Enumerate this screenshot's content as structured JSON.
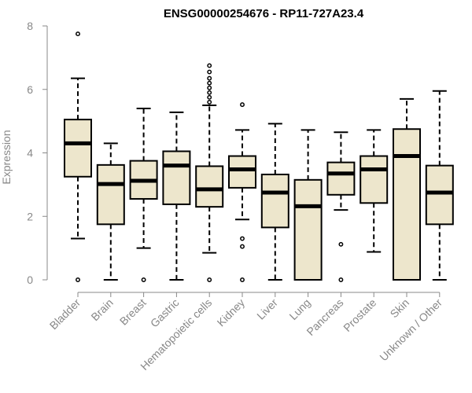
{
  "chart_data": {
    "type": "boxplot",
    "title": "ENSG00000254676 - RP11-727A23.4",
    "xlabel": "",
    "ylabel": "Expression",
    "ylim": [
      0,
      8
    ],
    "yticks": [
      0,
      2,
      4,
      6,
      8
    ],
    "colors": {
      "box_fill": "#ede6cc",
      "box_stroke": "#000000",
      "axis": "#888888"
    },
    "categories": [
      "Bladder",
      "Brain",
      "Breast",
      "Gastric",
      "Hematopoietic cells",
      "Kidney",
      "Liver",
      "Lung",
      "Pancreas",
      "Prostate",
      "Skin",
      "Unknown / Other"
    ],
    "boxes": [
      {
        "category": "Bladder",
        "whisker_low": 1.3,
        "q1": 3.25,
        "median": 4.3,
        "q3": 5.05,
        "whisker_high": 6.35,
        "outliers": [
          7.75,
          0.0
        ]
      },
      {
        "category": "Brain",
        "whisker_low": 0.0,
        "q1": 1.75,
        "median": 3.02,
        "q3": 3.62,
        "whisker_high": 4.3,
        "outliers": []
      },
      {
        "category": "Breast",
        "whisker_low": 1.0,
        "q1": 2.55,
        "median": 3.12,
        "q3": 3.75,
        "whisker_high": 5.4,
        "outliers": [
          0.0
        ]
      },
      {
        "category": "Gastric",
        "whisker_low": 0.0,
        "q1": 2.38,
        "median": 3.6,
        "q3": 4.05,
        "whisker_high": 5.28,
        "outliers": []
      },
      {
        "category": "Hematopoietic cells",
        "whisker_low": 0.85,
        "q1": 2.3,
        "median": 2.85,
        "q3": 3.58,
        "whisker_high": 5.5,
        "outliers": [
          6.75,
          6.55,
          6.35,
          6.2,
          6.05,
          5.9,
          5.75,
          5.6,
          0.0
        ]
      },
      {
        "category": "Kidney",
        "whisker_low": 1.9,
        "q1": 2.9,
        "median": 3.48,
        "q3": 3.9,
        "whisker_high": 4.72,
        "outliers": [
          5.52,
          1.3,
          1.05,
          0.0
        ]
      },
      {
        "category": "Liver",
        "whisker_low": 0.0,
        "q1": 1.65,
        "median": 2.75,
        "q3": 3.32,
        "whisker_high": 4.92,
        "outliers": []
      },
      {
        "category": "Lung",
        "whisker_low": 0.0,
        "q1": 0.0,
        "median": 2.32,
        "q3": 3.15,
        "whisker_high": 4.72,
        "outliers": []
      },
      {
        "category": "Pancreas",
        "whisker_low": 2.2,
        "q1": 2.68,
        "median": 3.35,
        "q3": 3.7,
        "whisker_high": 4.65,
        "outliers": [
          1.12,
          0.0
        ]
      },
      {
        "category": "Prostate",
        "whisker_low": 0.88,
        "q1": 2.42,
        "median": 3.48,
        "q3": 3.9,
        "whisker_high": 4.72,
        "outliers": []
      },
      {
        "category": "Skin",
        "whisker_low": 0.0,
        "q1": 0.0,
        "median": 3.9,
        "q3": 4.75,
        "whisker_high": 5.7,
        "outliers": []
      },
      {
        "category": "Unknown / Other",
        "whisker_low": 0.0,
        "q1": 1.75,
        "median": 2.75,
        "q3": 3.6,
        "whisker_high": 5.95,
        "outliers": []
      }
    ]
  }
}
